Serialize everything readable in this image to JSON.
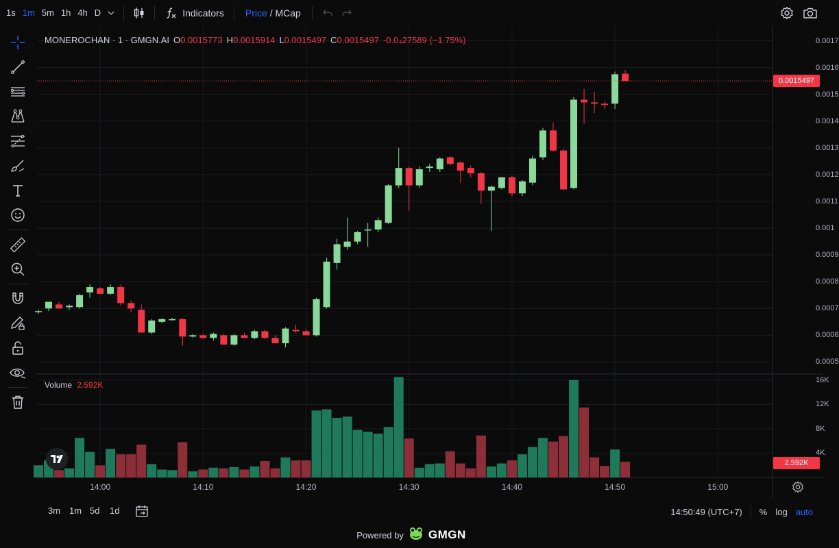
{
  "toolbar": {
    "timeframes": [
      {
        "label": "1s",
        "active": false
      },
      {
        "label": "1m",
        "active": true
      },
      {
        "label": "5m",
        "active": false
      },
      {
        "label": "1h",
        "active": false
      },
      {
        "label": "4h",
        "active": false
      },
      {
        "label": "D",
        "active": false
      }
    ],
    "indicators_label": "Indicators",
    "price_label": "Price",
    "separator": "/",
    "mcap_label": "MCap"
  },
  "legend": {
    "symbol": "MONEROCHAN · 1 · GMGN.AI",
    "o_label": "O",
    "o_value": "0.0015773",
    "h_label": "H",
    "h_value": "0.0015914",
    "l_label": "L",
    "l_value": "0.0015497",
    "c_label": "C",
    "c_value": "0.0015497",
    "change": "-0.0₄27589 (−1.75%)"
  },
  "volume_legend": {
    "label": "Volume",
    "value": "2.592K"
  },
  "price_axis": [
    "0.0017",
    "0.0016",
    "0.0015",
    "0.0014",
    "0.0013",
    "0.0012",
    "0.0011",
    "0.001",
    "0.0009",
    "0.0008",
    "0.0007",
    "0.0006",
    "0.0005"
  ],
  "volume_axis": [
    "16K",
    "12K",
    "8K",
    "4K"
  ],
  "time_axis": [
    "14:00",
    "14:10",
    "14:20",
    "14:30",
    "14:40",
    "14:50",
    "15:00"
  ],
  "current_price_label": "0.0015497",
  "current_volume_label": "2.592K",
  "bottom": {
    "ranges": [
      "3m",
      "1m",
      "5d",
      "1d"
    ],
    "clock": "14:50:49 (UTC+7)",
    "percent": "%",
    "log": "log",
    "auto": "auto"
  },
  "footer": {
    "powered": "Powered by",
    "brand": "GMGN"
  },
  "colors": {
    "up": "#89d99b",
    "down": "#f23645",
    "vol_up": "#1f7a5c",
    "vol_down": "#8c2f39",
    "accent": "#2962ff"
  },
  "chart_data": {
    "type": "candlestick",
    "interval": "1m",
    "start_time": "13:54",
    "y_range": [
      0.00045,
      0.00175
    ],
    "volume_range": [
      0,
      17000
    ],
    "candles": [
      {
        "o": 0.00069,
        "h": 0.000695,
        "l": 0.00068,
        "c": 0.00069,
        "v": 2000
      },
      {
        "o": 0.0007,
        "h": 0.00072,
        "l": 0.00069,
        "c": 0.000725,
        "v": 2800
      },
      {
        "o": 0.000715,
        "h": 0.000725,
        "l": 0.000705,
        "c": 0.0007,
        "v": 1200
      },
      {
        "o": 0.000705,
        "h": 0.000715,
        "l": 0.000695,
        "c": 0.00071,
        "v": 1500
      },
      {
        "o": 0.000705,
        "h": 0.000755,
        "l": 0.0007,
        "c": 0.00075,
        "v": 6500
      },
      {
        "o": 0.00076,
        "h": 0.00079,
        "l": 0.00074,
        "c": 0.00078,
        "v": 4200
      },
      {
        "o": 0.000775,
        "h": 0.00078,
        "l": 0.000755,
        "c": 0.000755,
        "v": 2000
      },
      {
        "o": 0.000755,
        "h": 0.00079,
        "l": 0.00075,
        "c": 0.00078,
        "v": 4700
      },
      {
        "o": 0.00078,
        "h": 0.00079,
        "l": 0.00071,
        "c": 0.00072,
        "v": 3800
      },
      {
        "o": 0.00072,
        "h": 0.00073,
        "l": 0.000685,
        "c": 0.0007,
        "v": 3800
      },
      {
        "o": 0.000695,
        "h": 0.000715,
        "l": 0.00061,
        "c": 0.00061,
        "v": 5400
      },
      {
        "o": 0.00061,
        "h": 0.00066,
        "l": 0.000605,
        "c": 0.000655,
        "v": 2200
      },
      {
        "o": 0.00065,
        "h": 0.000665,
        "l": 0.000645,
        "c": 0.00066,
        "v": 1300
      },
      {
        "o": 0.00066,
        "h": 0.000665,
        "l": 0.000655,
        "c": 0.00066,
        "v": 1200
      },
      {
        "o": 0.00066,
        "h": 0.000665,
        "l": 0.00056,
        "c": 0.000595,
        "v": 5800
      },
      {
        "o": 0.000595,
        "h": 0.000605,
        "l": 0.00059,
        "c": 0.0006,
        "v": 1000
      },
      {
        "o": 0.0006,
        "h": 0.000605,
        "l": 0.000585,
        "c": 0.00059,
        "v": 1300
      },
      {
        "o": 0.00059,
        "h": 0.00061,
        "l": 0.00058,
        "c": 0.000605,
        "v": 1600
      },
      {
        "o": 0.0006,
        "h": 0.000605,
        "l": 0.000565,
        "c": 0.000565,
        "v": 1500
      },
      {
        "o": 0.000565,
        "h": 0.000605,
        "l": 0.00056,
        "c": 0.0006,
        "v": 1700
      },
      {
        "o": 0.0006,
        "h": 0.00061,
        "l": 0.00059,
        "c": 0.00059,
        "v": 1300
      },
      {
        "o": 0.00059,
        "h": 0.00062,
        "l": 0.000585,
        "c": 0.000615,
        "v": 1800
      },
      {
        "o": 0.000615,
        "h": 0.00062,
        "l": 0.000585,
        "c": 0.00059,
        "v": 2700
      },
      {
        "o": 0.00059,
        "h": 0.0006,
        "l": 0.00057,
        "c": 0.00057,
        "v": 1500
      },
      {
        "o": 0.00057,
        "h": 0.00063,
        "l": 0.000555,
        "c": 0.000625,
        "v": 3300
      },
      {
        "o": 0.00062,
        "h": 0.00064,
        "l": 0.00061,
        "c": 0.000615,
        "v": 2800
      },
      {
        "o": 0.000615,
        "h": 0.000625,
        "l": 0.0006,
        "c": 0.0006,
        "v": 2800
      },
      {
        "o": 0.0006,
        "h": 0.00074,
        "l": 0.000595,
        "c": 0.000735,
        "v": 11000
      },
      {
        "o": 0.000705,
        "h": 0.00089,
        "l": 0.0007,
        "c": 0.000875,
        "v": 11200
      },
      {
        "o": 0.00087,
        "h": 0.00096,
        "l": 0.000845,
        "c": 0.00094,
        "v": 9800
      },
      {
        "o": 0.00093,
        "h": 0.00104,
        "l": 0.00092,
        "c": 0.00095,
        "v": 10000
      },
      {
        "o": 0.00095,
        "h": 0.00099,
        "l": 0.00094,
        "c": 0.000985,
        "v": 7800
      },
      {
        "o": 0.000995,
        "h": 0.00102,
        "l": 0.00093,
        "c": 0.000995,
        "v": 7500
      },
      {
        "o": 0.000995,
        "h": 0.00104,
        "l": 0.000985,
        "c": 0.00103,
        "v": 7200
      },
      {
        "o": 0.00102,
        "h": 0.001165,
        "l": 0.001015,
        "c": 0.00116,
        "v": 8300
      },
      {
        "o": 0.00116,
        "h": 0.0013,
        "l": 0.00115,
        "c": 0.001225,
        "v": 16500
      },
      {
        "o": 0.001225,
        "h": 0.00123,
        "l": 0.001065,
        "c": 0.00116,
        "v": 6400
      },
      {
        "o": 0.00116,
        "h": 0.00123,
        "l": 0.00115,
        "c": 0.00122,
        "v": 1600
      },
      {
        "o": 0.001225,
        "h": 0.00124,
        "l": 0.00121,
        "c": 0.00123,
        "v": 2200
      },
      {
        "o": 0.00122,
        "h": 0.001265,
        "l": 0.00121,
        "c": 0.00126,
        "v": 2300
      },
      {
        "o": 0.001265,
        "h": 0.00127,
        "l": 0.001235,
        "c": 0.00124,
        "v": 4300
      },
      {
        "o": 0.001245,
        "h": 0.00125,
        "l": 0.00117,
        "c": 0.001215,
        "v": 2300
      },
      {
        "o": 0.001225,
        "h": 0.001235,
        "l": 0.00119,
        "c": 0.001205,
        "v": 1500
      },
      {
        "o": 0.001205,
        "h": 0.00121,
        "l": 0.00109,
        "c": 0.00114,
        "v": 6900
      },
      {
        "o": 0.00114,
        "h": 0.00116,
        "l": 0.00099,
        "c": 0.001155,
        "v": 1800
      },
      {
        "o": 0.00115,
        "h": 0.00119,
        "l": 0.001145,
        "c": 0.00119,
        "v": 2300
      },
      {
        "o": 0.00119,
        "h": 0.001195,
        "l": 0.00112,
        "c": 0.00113,
        "v": 2800
      },
      {
        "o": 0.00113,
        "h": 0.00118,
        "l": 0.00112,
        "c": 0.001175,
        "v": 3800
      },
      {
        "o": 0.00117,
        "h": 0.00127,
        "l": 0.00116,
        "c": 0.00126,
        "v": 5000
      },
      {
        "o": 0.001265,
        "h": 0.001375,
        "l": 0.001255,
        "c": 0.001365,
        "v": 6500
      },
      {
        "o": 0.001365,
        "h": 0.001395,
        "l": 0.001285,
        "c": 0.00129,
        "v": 5900
      },
      {
        "o": 0.00129,
        "h": 0.001295,
        "l": 0.00114,
        "c": 0.001145,
        "v": 6800
      },
      {
        "o": 0.00115,
        "h": 0.00149,
        "l": 0.001145,
        "c": 0.00148,
        "v": 16000
      },
      {
        "o": 0.00148,
        "h": 0.00152,
        "l": 0.00139,
        "c": 0.00147,
        "v": 11500
      },
      {
        "o": 0.00147,
        "h": 0.00151,
        "l": 0.00143,
        "c": 0.001465,
        "v": 3300
      },
      {
        "o": 0.001465,
        "h": 0.001475,
        "l": 0.001445,
        "c": 0.00146,
        "v": 1900
      },
      {
        "o": 0.001465,
        "h": 0.001585,
        "l": 0.001445,
        "c": 0.001575,
        "v": 4600
      },
      {
        "o": 0.001577,
        "h": 0.001591,
        "l": 0.00155,
        "c": 0.00155,
        "v": 2592
      }
    ]
  }
}
